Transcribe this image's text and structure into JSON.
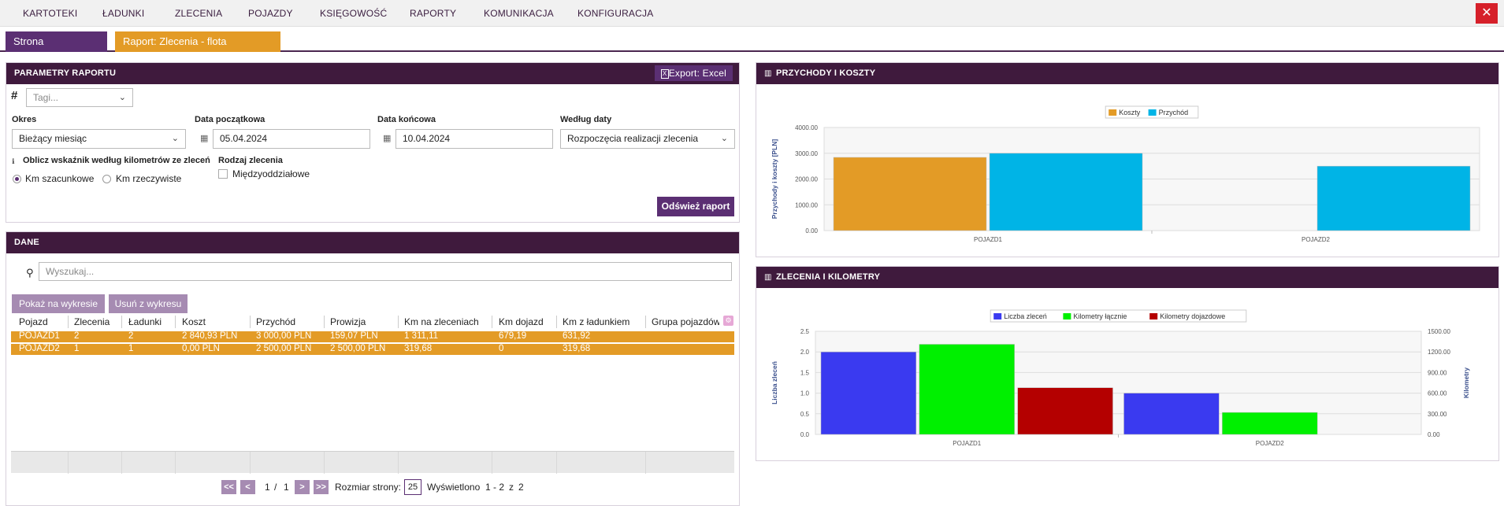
{
  "topmenu": {
    "items": [
      "KARTOTEKI",
      "ŁADUNKI",
      "ZLECENIA",
      "POJAZDY",
      "KSIĘGOWOŚĆ",
      "RAPORTY",
      "KOMUNIKACJA",
      "KONFIGURACJA"
    ],
    "close": "✕"
  },
  "tabs": [
    {
      "label": "Strona startowa",
      "close": "✕"
    },
    {
      "label": "Raport: Zlecenia - flota własna",
      "close": "✕"
    }
  ],
  "params": {
    "title": "PARAMETRY RAPORTU",
    "export": "Export: Excel",
    "tags_placeholder": "Tagi...",
    "okres_label": "Okres",
    "okres_value": "Bieżący miesiąc",
    "start_label": "Data początkowa",
    "start_value": "05.04.2024",
    "end_label": "Data końcowa",
    "end_value": "10.04.2024",
    "bydate_label": "Według daty",
    "bydate_value": "Rozpoczęcia realizacji zlecenia",
    "km_label": "Oblicz wskaźnik według kilometrów ze zleceń",
    "km_opt1": "Km szacunkowe",
    "km_opt2": "Km rzeczywiste",
    "type_label": "Rodzaj zlecenia",
    "type_opt": "Międzyoddziałowe",
    "refresh": "Odśwież raport"
  },
  "dane": {
    "title": "DANE",
    "search_placeholder": "Wyszukaj...",
    "show_btn": "Pokaż na wykresie",
    "remove_btn": "Usuń z wykresu",
    "columns": [
      "Pojazd",
      "Zlecenia",
      "Ładunki",
      "Koszt",
      "Przychód",
      "Prowizja",
      "Km na zleceniach",
      "Km dojazd",
      "Km z ładunkiem",
      "Grupa pojazdów"
    ],
    "rows": [
      [
        "POJAZD1",
        "2",
        "2",
        "2 840,93 PLN",
        "3 000,00 PLN",
        "159,07 PLN",
        "1 311,11",
        "679,19",
        "631,92",
        ""
      ],
      [
        "POJAZD2",
        "1",
        "1",
        "0,00 PLN",
        "2 500,00 PLN",
        "2 500,00 PLN",
        "319,68",
        "0",
        "319,68",
        ""
      ]
    ],
    "pager": {
      "first": "<<",
      "prev": "<",
      "next": ">",
      "last": ">>",
      "page": "1",
      "sep": "/",
      "pages": "1",
      "size_label": "Rozmiar strony:",
      "size": "25",
      "shown_label": "Wyświetlono",
      "range": "1 - 2",
      "of": "z",
      "total": "2"
    }
  },
  "colors": {
    "purple": "#5b2f73",
    "dark": "#3f1a3d",
    "orange": "#e39b26",
    "cyan": "#00b4e6",
    "blue": "#3a3af0",
    "green": "#00f000",
    "red": "#b40000"
  },
  "chart_data": [
    {
      "type": "bar",
      "title": "PRZYCHODY I KOSZTY",
      "categories": [
        "POJAZD1",
        "POJAZD2"
      ],
      "series": [
        {
          "name": "Koszty",
          "values": [
            2840.93,
            0
          ],
          "color": "#e39b26"
        },
        {
          "name": "Przychód",
          "values": [
            3000.0,
            2500.0
          ],
          "color": "#00b4e6"
        }
      ],
      "ylabel": "Przychody i koszty [PLN]",
      "ylim": [
        0,
        4000
      ],
      "yticks": [
        "0.00",
        "1000.00",
        "2000.00",
        "3000.00",
        "4000.00"
      ],
      "legend": "top-center"
    },
    {
      "type": "bar",
      "title": "ZLECENIA I KILOMETRY",
      "categories": [
        "POJAZD1",
        "POJAZD2"
      ],
      "series": [
        {
          "name": "Liczba zleceń",
          "values": [
            2,
            1
          ],
          "color": "#3a3af0",
          "axis": "left"
        },
        {
          "name": "Kilometry łącznie",
          "values": [
            1311.11,
            319.68
          ],
          "color": "#00f000",
          "axis": "right"
        },
        {
          "name": "Kilometry dojazdowe",
          "values": [
            679.19,
            0
          ],
          "color": "#b40000",
          "axis": "right"
        }
      ],
      "ylabel": "Liczba zleceń",
      "ylabel_right": "Kilometry",
      "ylim": [
        0,
        2.5
      ],
      "ylim_right": [
        0,
        1500
      ],
      "yticks": [
        "0.0",
        "0.5",
        "1.0",
        "1.5",
        "2.0",
        "2.5"
      ],
      "yticks_right": [
        "0.00",
        "300.00",
        "600.00",
        "900.00",
        "1200.00",
        "1500.00"
      ],
      "legend": "top-center"
    }
  ]
}
